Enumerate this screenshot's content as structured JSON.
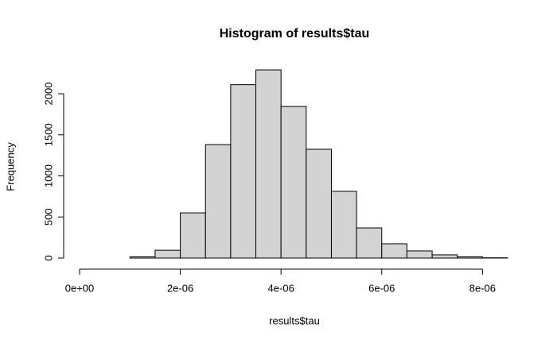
{
  "chart_data": {
    "type": "histogram",
    "title": "Histogram of results$tau",
    "x_label": "results$tau",
    "y_label": "Frequency",
    "bins": [
      0,
      5e-07,
      1e-06,
      1.5e-06,
      2e-06,
      2.5e-06,
      3e-06,
      3.5e-06,
      4e-06,
      4.5e-06,
      5e-06,
      5.5e-06,
      6e-06,
      6.5e-06,
      7e-06,
      7.5e-06,
      8e-06,
      8.5e-06
    ],
    "values": [
      0,
      0,
      15,
      95,
      550,
      1380,
      2110,
      2290,
      1845,
      1324,
      812,
      367,
      174,
      87,
      39,
      15,
      3
    ],
    "color": "#d3d3d3",
    "xlim": [
      0,
      8.5e-06
    ],
    "xticks": [
      {
        "value": 0,
        "label": "0e+00"
      },
      {
        "value": 2e-06,
        "label": "2e-06"
      },
      {
        "value": 4e-06,
        "label": "4e-06"
      },
      {
        "value": 6e-06,
        "label": "6e-06"
      },
      {
        "value": 8e-06,
        "label": "8e-06"
      }
    ],
    "ylim": [
      0,
      2300
    ],
    "yticks": [
      0,
      500,
      1000,
      1500,
      2000
    ],
    "grid": false
  }
}
